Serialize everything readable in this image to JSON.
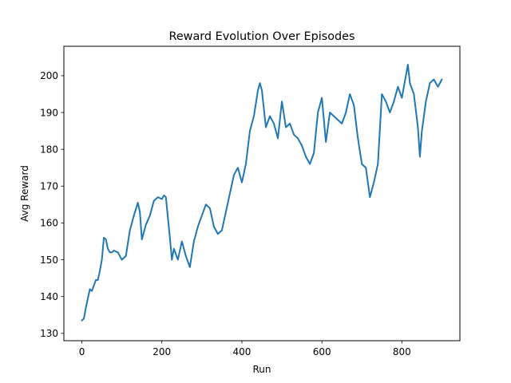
{
  "chart_data": {
    "type": "line",
    "title": "Reward Evolution Over Episodes",
    "xlabel": "Run",
    "ylabel": "Avg Reward",
    "xlim": [
      -45,
      945
    ],
    "ylim": [
      128,
      208
    ],
    "xticks": [
      0,
      200,
      400,
      600,
      800
    ],
    "yticks": [
      130,
      140,
      150,
      160,
      170,
      180,
      190,
      200
    ],
    "grid": false,
    "line_color": "#1f77b4",
    "series": [
      {
        "x": [
          0,
          5,
          10,
          15,
          20,
          25,
          30,
          35,
          40,
          45,
          50,
          55,
          60,
          65,
          70,
          75,
          80,
          90,
          100,
          110,
          120,
          130,
          140,
          145,
          150,
          160,
          170,
          180,
          190,
          200,
          205,
          210,
          220,
          225,
          230,
          240,
          250,
          260,
          270,
          280,
          290,
          300,
          310,
          320,
          330,
          340,
          350,
          360,
          370,
          380,
          390,
          400,
          410,
          420,
          430,
          440,
          445,
          450,
          460,
          470,
          480,
          490,
          500,
          510,
          520,
          530,
          540,
          550,
          560,
          570,
          580,
          590,
          600,
          610,
          620,
          630,
          640,
          650,
          660,
          670,
          680,
          690,
          700,
          710,
          720,
          730,
          740,
          750,
          760,
          770,
          780,
          790,
          800,
          810,
          815,
          820,
          830,
          840,
          845,
          850,
          860,
          870,
          880,
          890,
          900
        ],
        "y": [
          133.5,
          134,
          137,
          139.5,
          142,
          141.5,
          143,
          144.5,
          144.5,
          147,
          150,
          156,
          155.5,
          153,
          152,
          152,
          152.5,
          152,
          150,
          151,
          158,
          162,
          165.5,
          163,
          155.5,
          159.5,
          162,
          166,
          167,
          166.5,
          167.5,
          167,
          156,
          150,
          153,
          150,
          155,
          151,
          148,
          155,
          159,
          162,
          165,
          164,
          159,
          157,
          158,
          163,
          168,
          173,
          175,
          171,
          176,
          185,
          189,
          196,
          198,
          196,
          186,
          189,
          187,
          183,
          193,
          186,
          187,
          184,
          183,
          181,
          178,
          176,
          179,
          190,
          194,
          182,
          190,
          189,
          188,
          187,
          190,
          195,
          192,
          183,
          176,
          175,
          167,
          171,
          176,
          195,
          193,
          190,
          193,
          197,
          194,
          200,
          203,
          198,
          195,
          186,
          178,
          185,
          193,
          198,
          199,
          197,
          199
        ]
      }
    ]
  }
}
